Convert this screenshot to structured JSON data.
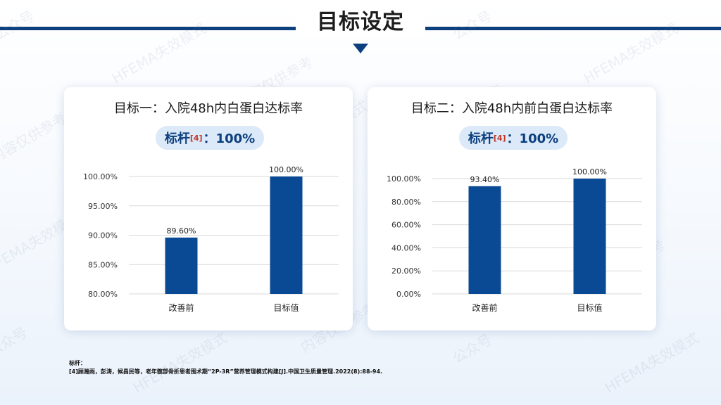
{
  "page_title": "目标设定",
  "colors": {
    "accent": "#0c3f7e",
    "bar": "#0a4a94"
  },
  "watermark": [
    "公众号",
    "HFEMA失效模式",
    "内容仅供参考"
  ],
  "cards": [
    {
      "title": "目标一：入院48h内白蛋白达标率",
      "benchmark_label": "标杆",
      "benchmark_ref": "[4]",
      "benchmark_value": "：100%"
    },
    {
      "title": "目标二：入院48h内前白蛋白达标率",
      "benchmark_label": "标杆",
      "benchmark_ref": "[4]",
      "benchmark_value": "：100%"
    }
  ],
  "chart_data": [
    {
      "type": "bar",
      "categories": [
        "改善前",
        "目标值"
      ],
      "values": [
        89.6,
        100
      ],
      "data_labels": [
        "89.60%",
        "100.00%"
      ],
      "ylim": [
        80,
        100
      ],
      "yticks": [
        80,
        85,
        90,
        95,
        100
      ],
      "ytick_labels": [
        "80.00%",
        "85.00%",
        "90.00%",
        "95.00%",
        "100.00%"
      ],
      "grid": true
    },
    {
      "type": "bar",
      "categories": [
        "改善前",
        "目标值"
      ],
      "values": [
        93.4,
        100
      ],
      "data_labels": [
        "93.40%",
        "100.00%"
      ],
      "ylim": [
        0,
        100
      ],
      "yticks": [
        0,
        20,
        40,
        60,
        80,
        100
      ],
      "ytick_labels": [
        "0.00%",
        "20.00%",
        "40.00%",
        "60.00%",
        "80.00%",
        "100.00%"
      ],
      "grid": true
    }
  ],
  "footnote": {
    "heading": "标杆：",
    "text": "[4]顾瀚雨，彭涛，候昌民等，老年髋部骨折患者围术期“2P-3R”营养管理模式构建[J].中国卫生质量管理.2022(8):88-94."
  }
}
